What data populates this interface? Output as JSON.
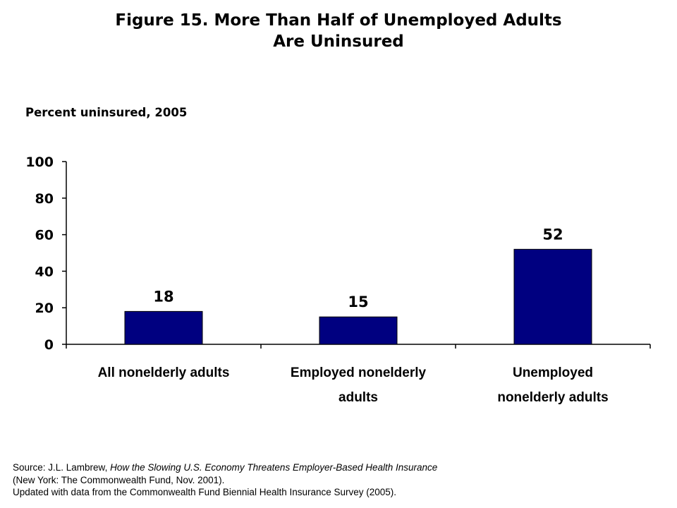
{
  "title": {
    "line1": "Figure 15. More Than Half of Unemployed Adults",
    "line2": "Are Uninsured"
  },
  "chart_data": {
    "type": "bar",
    "ylabel": "Percent uninsured, 2005",
    "xlabel": "",
    "ylim": [
      0,
      100
    ],
    "yticks": [
      0,
      20,
      40,
      60,
      80,
      100
    ],
    "grid": false,
    "categories": [
      [
        "All nonelderly adults"
      ],
      [
        "Employed nonelderly",
        "adults"
      ],
      [
        "Unemployed",
        "nonelderly adults"
      ]
    ],
    "values": [
      18,
      15,
      52
    ],
    "data_labels": [
      "18",
      "15",
      "52"
    ],
    "bar_color": "#000080"
  },
  "source": {
    "prefix": "Source: J.L.  Lambrew, ",
    "title": "How the Slowing U.S. Economy Threatens Employer-Based Health Insurance",
    "line2": "(New York: The Commonwealth Fund, Nov. 2001).",
    "line3": "Updated with data from the Commonwealth Fund Biennial Health Insurance Survey (2005)."
  }
}
